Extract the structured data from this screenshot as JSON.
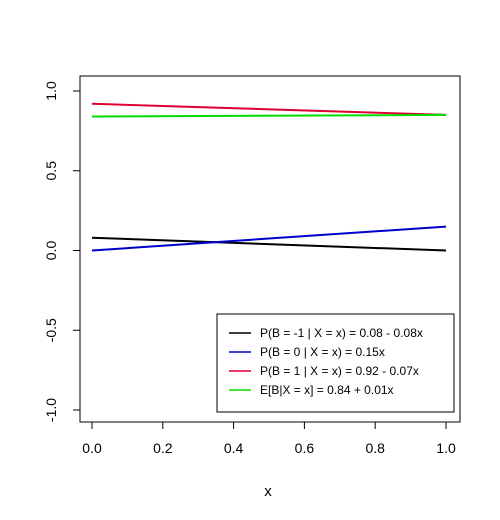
{
  "chart_data": {
    "type": "line",
    "title": "",
    "xlabel": "x",
    "ylabel": "",
    "xlim": [
      0,
      1
    ],
    "ylim": [
      -1,
      1
    ],
    "x_ticks": [
      0.0,
      0.2,
      0.4,
      0.6,
      0.8,
      1.0
    ],
    "x_tick_labels": [
      "0.0",
      "0.2",
      "0.4",
      "0.6",
      "0.8",
      "1.0"
    ],
    "y_ticks": [
      -1.0,
      -0.5,
      0.0,
      0.5,
      1.0
    ],
    "y_tick_labels": [
      "-1.0",
      "-0.5",
      "0.0",
      "0.5",
      "1.0"
    ],
    "grid": false,
    "legend_position": "bottom-right",
    "series": [
      {
        "name": "P(B = -1 | X = x) = 0.08 - 0.08x",
        "color": "#000000",
        "x": [
          0,
          1
        ],
        "y": [
          0.08,
          0.0
        ]
      },
      {
        "name": "P(B = 0 | X = x) =  0.15x",
        "color": "#0000CC",
        "x": [
          0,
          1
        ],
        "y": [
          0.0,
          0.15
        ]
      },
      {
        "name": "P(B = 1 | X = x) = 0.92  - 0.07x",
        "color": "#DD0033",
        "x": [
          0,
          1
        ],
        "y": [
          0.92,
          0.85
        ]
      },
      {
        "name": "E[B|X = x] = 0.84 + 0.01x",
        "color": "#00DD00",
        "x": [
          0,
          1
        ],
        "y": [
          0.84,
          0.85
        ]
      }
    ]
  }
}
